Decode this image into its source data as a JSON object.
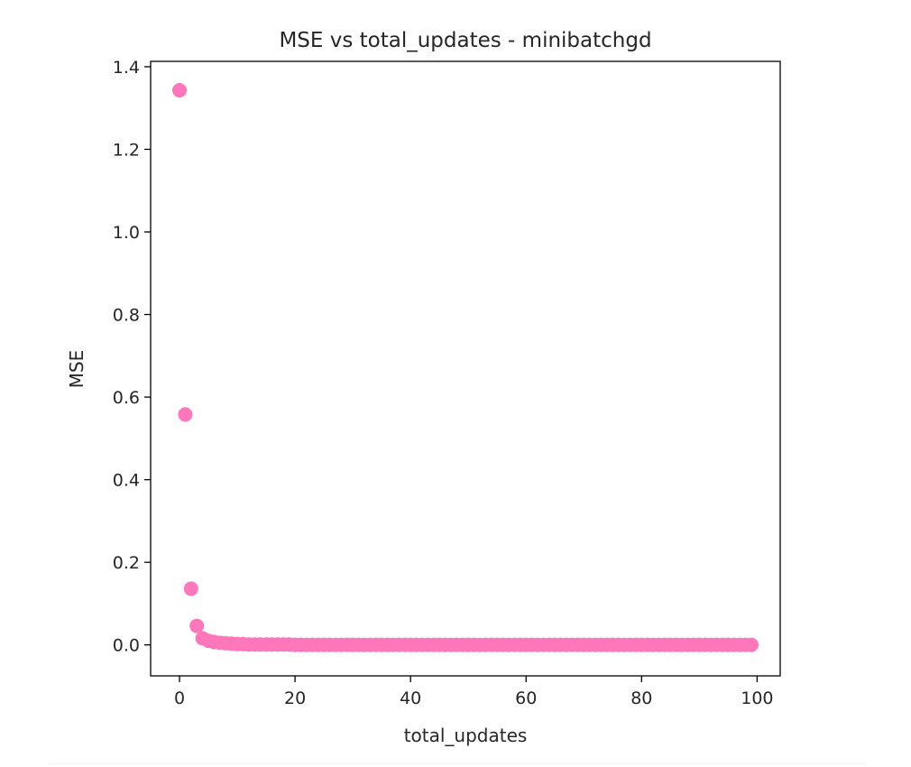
{
  "chart_data": {
    "type": "scatter",
    "title": "MSE vs total_updates - minibatchgd",
    "xlabel": "total_updates",
    "ylabel": "MSE",
    "xlim": [
      -5,
      104
    ],
    "ylim": [
      -0.075,
      1.413
    ],
    "xticks": [
      0,
      20,
      40,
      60,
      80,
      100
    ],
    "yticks": [
      0.0,
      0.2,
      0.4,
      0.6,
      0.8,
      1.0,
      1.2,
      1.4
    ],
    "grid": false,
    "legend": "none",
    "marker_color": "#ff77bb",
    "x": [
      0,
      1,
      2,
      3,
      4,
      5,
      6,
      7,
      8,
      9,
      10,
      11,
      12,
      13,
      14,
      15,
      16,
      17,
      18,
      19,
      20,
      21,
      22,
      23,
      24,
      25,
      26,
      27,
      28,
      29,
      30,
      31,
      32,
      33,
      34,
      35,
      36,
      37,
      38,
      39,
      40,
      41,
      42,
      43,
      44,
      45,
      46,
      47,
      48,
      49,
      50,
      51,
      52,
      53,
      54,
      55,
      56,
      57,
      58,
      59,
      60,
      61,
      62,
      63,
      64,
      65,
      66,
      67,
      68,
      69,
      70,
      71,
      72,
      73,
      74,
      75,
      76,
      77,
      78,
      79,
      80,
      81,
      82,
      83,
      84,
      85,
      86,
      87,
      88,
      89,
      90,
      91,
      92,
      93,
      94,
      95,
      96,
      97,
      98,
      99
    ],
    "y": [
      1.343,
      0.558,
      0.136,
      0.046,
      0.016,
      0.01,
      0.007,
      0.005,
      0.004,
      0.003,
      0.002,
      0.002,
      0.001,
      0.001,
      0.001,
      0.001,
      0.001,
      0.001,
      0.001,
      0.001,
      0,
      0,
      0,
      0,
      0,
      0,
      0,
      0,
      0,
      0,
      0,
      0,
      0,
      0,
      0,
      0,
      0,
      0,
      0,
      0,
      0,
      0,
      0,
      0,
      0,
      0,
      0,
      0,
      0,
      0,
      0,
      0,
      0,
      0,
      0,
      0,
      0,
      0,
      0,
      0,
      0,
      0,
      0,
      0,
      0,
      0,
      0,
      0,
      0,
      0,
      0,
      0,
      0,
      0,
      0,
      0,
      0,
      0,
      0,
      0,
      0,
      0,
      0,
      0,
      0,
      0,
      0,
      0,
      0,
      0,
      0,
      0,
      0,
      0,
      0,
      0,
      0,
      0,
      0,
      0
    ]
  }
}
